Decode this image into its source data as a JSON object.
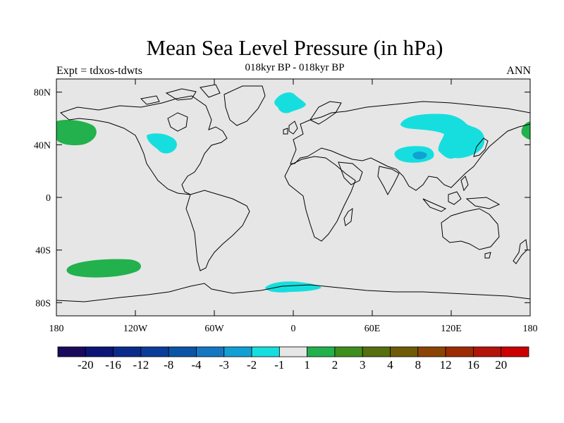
{
  "title": "Mean Sea Level Pressure (in hPa)",
  "subtitle": "018kyr BP - 018kyr BP",
  "left_label": "Expt = tdxos-tdwts",
  "right_label": "ANN",
  "lat_ticks": [
    {
      "value": 80,
      "label": "80N"
    },
    {
      "value": 40,
      "label": "40N"
    },
    {
      "value": 0,
      "label": "0"
    },
    {
      "value": -40,
      "label": "40S"
    },
    {
      "value": -80,
      "label": "80S"
    }
  ],
  "lon_ticks": [
    {
      "value": -180,
      "label": "180"
    },
    {
      "value": -120,
      "label": "120W"
    },
    {
      "value": -60,
      "label": "60W"
    },
    {
      "value": 0,
      "label": "0"
    },
    {
      "value": 60,
      "label": "60E"
    },
    {
      "value": 120,
      "label": "120E"
    },
    {
      "value": 180,
      "label": "180"
    }
  ],
  "colorbar": {
    "colors": [
      "#1a0a5c",
      "#0d1577",
      "#0a2a8c",
      "#0a3d9a",
      "#0a55a6",
      "#1577c1",
      "#12a0d4",
      "#17dede",
      "#e6e6e6",
      "#22b14c",
      "#3e8e1e",
      "#566f0f",
      "#6f5a07",
      "#8b4406",
      "#9c2b04",
      "#b31409",
      "#cc0000"
    ],
    "labels": [
      "-20",
      "-16",
      "-12",
      "-8",
      "-4",
      "-3",
      "-2",
      "-1",
      "1",
      "2",
      "3",
      "4",
      "8",
      "12",
      "16",
      "20"
    ]
  },
  "colors": {
    "background": "#e6e6e6",
    "negative_anomaly": "#17dede",
    "negative_core": "#12a0d4",
    "positive_anomaly": "#22b14c"
  }
}
